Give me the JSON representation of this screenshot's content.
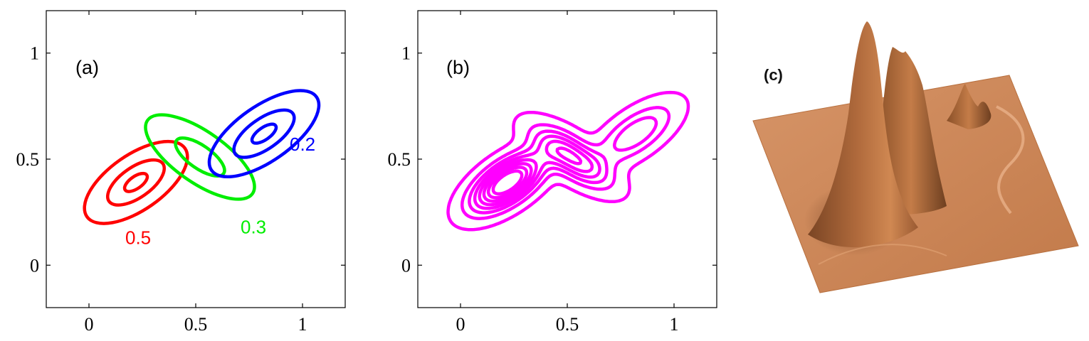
{
  "chart_data": [
    {
      "panel": "(a)",
      "type": "contour",
      "xlim": [
        -0.2,
        1.2
      ],
      "ylim": [
        -0.2,
        1.2
      ],
      "xticks": [
        0,
        0.5,
        1
      ],
      "yticks": [
        0,
        0.5,
        1
      ],
      "xtick_labels": [
        "0",
        "0.5",
        "1"
      ],
      "ytick_labels": [
        "0",
        "0.5",
        "1"
      ],
      "grid": false,
      "components": [
        {
          "weight_label": "0.5",
          "color": "#ff0000",
          "center": [
            0.22,
            0.39
          ],
          "outer_semi_axes": [
            0.28,
            0.13
          ],
          "angle_deg": 35,
          "levels": [
            1.0,
            0.55,
            0.22
          ]
        },
        {
          "weight_label": "0.3",
          "color": "#00ee00",
          "center": [
            0.52,
            0.51
          ],
          "outer_semi_axes": [
            0.3,
            0.12
          ],
          "angle_deg": -35,
          "levels": [
            1.0,
            0.45
          ]
        },
        {
          "weight_label": "0.2",
          "color": "#0000ff",
          "center": [
            0.82,
            0.62
          ],
          "outer_semi_axes": [
            0.3,
            0.13
          ],
          "angle_deg": 35,
          "levels": [
            1.0,
            0.55,
            0.22
          ]
        }
      ]
    },
    {
      "panel": "(b)",
      "type": "contour",
      "xlim": [
        -0.2,
        1.2
      ],
      "ylim": [
        -0.2,
        1.2
      ],
      "xticks": [
        0,
        0.5,
        1
      ],
      "yticks": [
        0,
        0.5,
        1
      ],
      "xtick_labels": [
        "0",
        "0.5",
        "1"
      ],
      "ytick_labels": [
        "0",
        "0.5",
        "1"
      ],
      "grid": false,
      "color": "#ff00ff",
      "description_levels": 8
    },
    {
      "panel": "(c)",
      "type": "surface"
    }
  ]
}
